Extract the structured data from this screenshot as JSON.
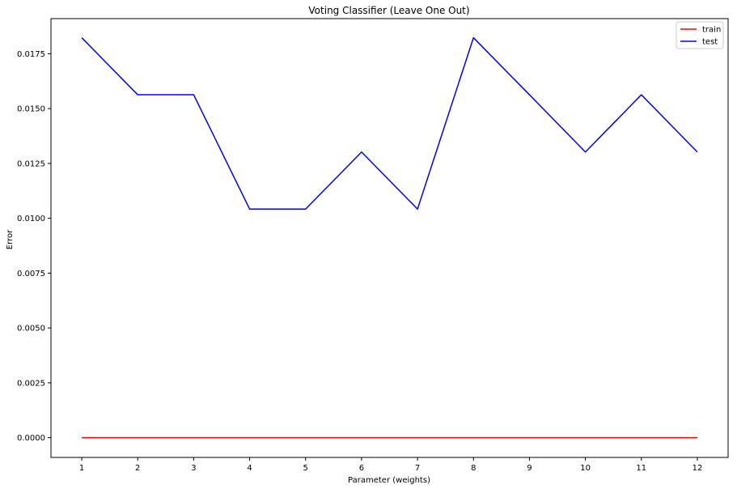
{
  "chart_data": {
    "type": "line",
    "title": "Voting Classifier (Leave One Out)",
    "xlabel": "Parameter (weights)",
    "ylabel": "Error",
    "x": [
      1,
      2,
      3,
      4,
      5,
      6,
      7,
      8,
      9,
      10,
      11,
      12
    ],
    "xticks": [
      "1",
      "2",
      "3",
      "4",
      "5",
      "6",
      "7",
      "8",
      "9",
      "10",
      "11",
      "12"
    ],
    "yticks": [
      "0.0000",
      "0.0025",
      "0.0050",
      "0.0075",
      "0.0100",
      "0.0125",
      "0.0150",
      "0.0175"
    ],
    "xlim": [
      0.45,
      12.55
    ],
    "ylim": [
      -0.0009,
      0.0191
    ],
    "grid": false,
    "legend_position": "top-right",
    "series": [
      {
        "name": "train",
        "color": "#ff0000",
        "values": [
          0,
          0,
          0,
          0,
          0,
          0,
          0,
          0,
          0,
          0,
          0,
          0
        ]
      },
      {
        "name": "test",
        "color": "#0000ff",
        "values": [
          0.01823,
          0.01563,
          0.01563,
          0.01042,
          0.01042,
          0.01302,
          0.01042,
          0.01823,
          0.01563,
          0.01302,
          0.01563,
          0.01302
        ]
      }
    ]
  }
}
